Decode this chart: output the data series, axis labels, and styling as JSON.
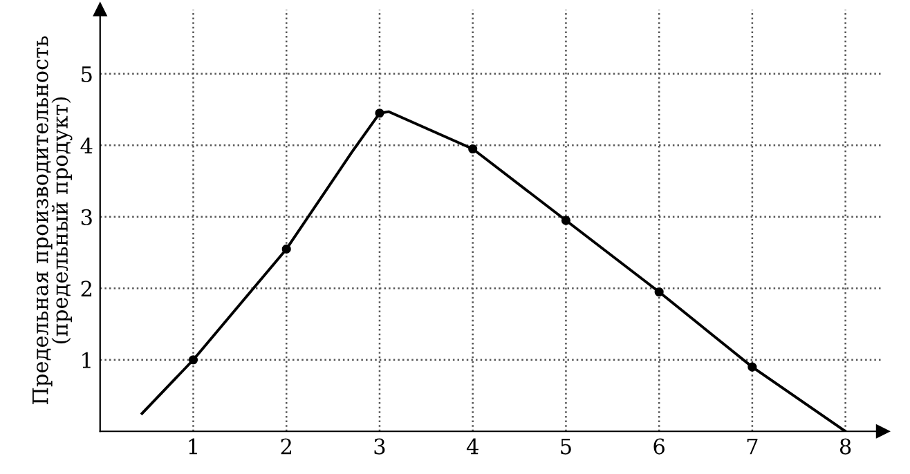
{
  "chart_data": {
    "type": "line",
    "ylabel": "Предельная производительность\n(предельный продукт)",
    "xlim": [
      0,
      8.4
    ],
    "ylim": [
      0,
      5.9
    ],
    "xticks": [
      1,
      2,
      3,
      4,
      5,
      6,
      7,
      8
    ],
    "yticks": [
      1,
      2,
      3,
      4,
      5
    ],
    "grid": true,
    "line_style": "solid",
    "series": [
      {
        "color": "#000000",
        "marker": "none",
        "x": [
          0.45,
          1,
          2,
          2.7,
          3,
          3.1,
          4,
          5,
          6,
          7,
          8
        ],
        "values": [
          0.25,
          1.0,
          2.55,
          3.9,
          4.45,
          4.47,
          3.95,
          2.95,
          1.95,
          0.9,
          0
        ]
      },
      {
        "type": "scatter",
        "color": "#000000",
        "marker": "circle",
        "x": [
          1,
          2,
          3,
          4,
          5,
          6,
          7
        ],
        "values": [
          1.0,
          2.55,
          4.45,
          3.95,
          2.95,
          1.95,
          0.9
        ]
      }
    ]
  }
}
